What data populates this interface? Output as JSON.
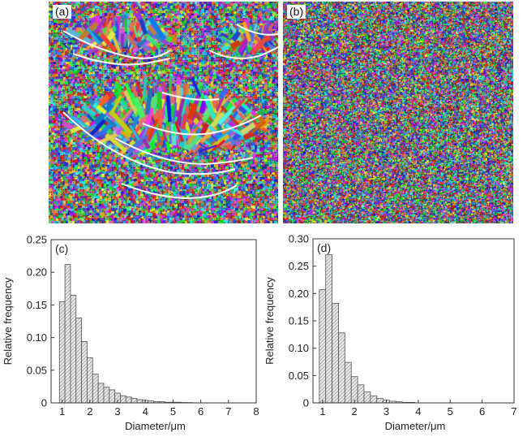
{
  "micrographs": [
    {
      "label": "(a)"
    },
    {
      "label": "(b)"
    }
  ],
  "colors": {
    "bar_fill": "#e8e8e8",
    "bar_hatch": "#7a7a7a",
    "bar_stroke": "#555555",
    "axis": "#333333",
    "boundary_line": "#ffffff"
  },
  "chart_data": [
    {
      "type": "bar",
      "panel_label": "(c)",
      "xlabel": "Diameter/μm",
      "ylabel": "Relative frequency",
      "xlim": [
        0.6,
        8
      ],
      "ylim": [
        0,
        0.25
      ],
      "xticks": [
        1,
        2,
        3,
        4,
        5,
        6,
        7,
        8
      ],
      "yticks": [
        0,
        0.05,
        0.1,
        0.15,
        0.2,
        0.25
      ],
      "ytick_labels": [
        "0",
        "0.05",
        "0.10",
        "0.15",
        "0.20",
        "0.25"
      ],
      "bin_width": 0.2,
      "x": [
        1.0,
        1.2,
        1.4,
        1.6,
        1.8,
        2.0,
        2.2,
        2.4,
        2.6,
        2.8,
        3.0,
        3.2,
        3.4,
        3.6,
        3.8,
        4.0,
        4.2,
        4.4,
        4.6,
        4.8,
        5.0,
        5.2,
        5.4,
        5.6
      ],
      "values": [
        0.155,
        0.212,
        0.165,
        0.13,
        0.094,
        0.069,
        0.044,
        0.03,
        0.024,
        0.02,
        0.015,
        0.011,
        0.009,
        0.007,
        0.005,
        0.004,
        0.003,
        0.002,
        0.002,
        0.001,
        0.001,
        0.001,
        0.0005,
        0.0005
      ]
    },
    {
      "type": "bar",
      "panel_label": "(d)",
      "xlabel": "Diameter/μm",
      "ylabel": "Relative frequency",
      "xlim": [
        0.7,
        7
      ],
      "ylim": [
        0,
        0.3
      ],
      "xticks": [
        1,
        2,
        3,
        4,
        5,
        6,
        7
      ],
      "yticks": [
        0,
        0.05,
        0.1,
        0.15,
        0.2,
        0.25,
        0.3
      ],
      "ytick_labels": [
        "0",
        "0.05",
        "0.10",
        "0.15",
        "0.20",
        "0.25",
        "0.30"
      ],
      "bin_width": 0.2,
      "x": [
        1.0,
        1.2,
        1.4,
        1.6,
        1.8,
        2.0,
        2.2,
        2.4,
        2.6,
        2.8,
        3.0,
        3.2,
        3.4,
        3.6,
        3.8
      ],
      "values": [
        0.207,
        0.271,
        0.182,
        0.128,
        0.074,
        0.048,
        0.033,
        0.02,
        0.013,
        0.008,
        0.005,
        0.003,
        0.002,
        0.001,
        0.001
      ]
    }
  ]
}
